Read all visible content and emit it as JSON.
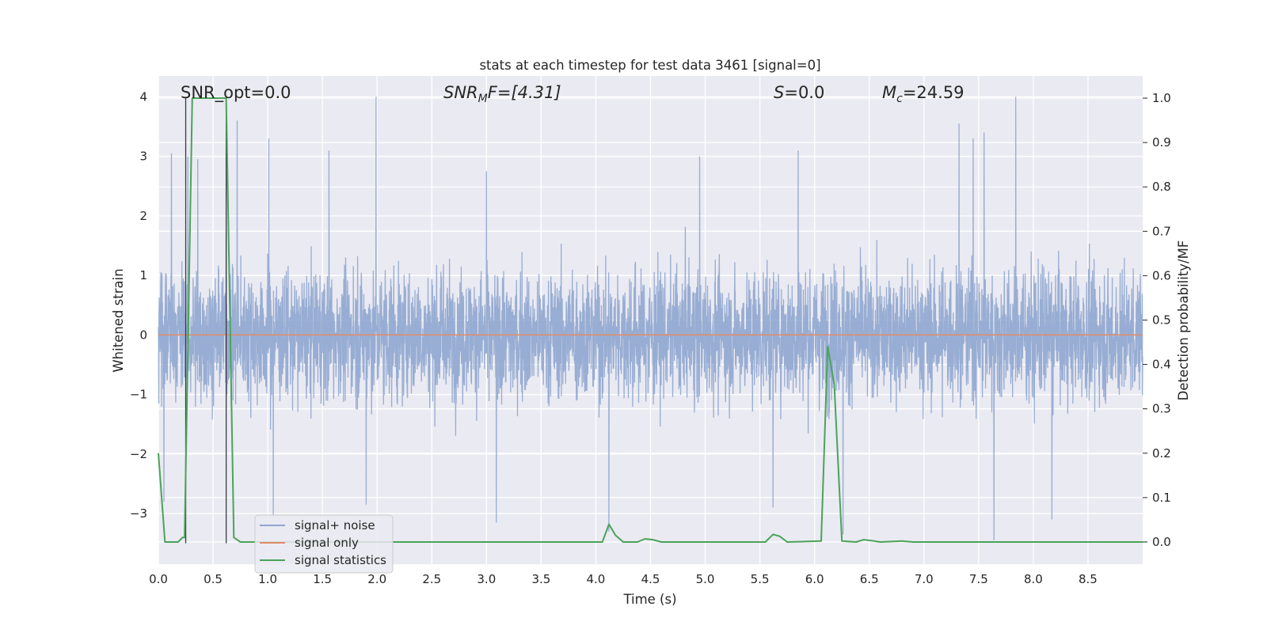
{
  "chart_data": {
    "type": "line",
    "title": "stats at each timestep for test data 3461 [signal=0]",
    "xlabel": "Time (s)",
    "ylabel": "Whitened strain",
    "y2label": "Detection probability/MF",
    "xlim": [
      0.0,
      9.0
    ],
    "ylim": [
      -3.85,
      4.35
    ],
    "y2lim": [
      -0.05,
      1.05
    ],
    "xticks": [
      "0.0",
      "0.5",
      "1.0",
      "1.5",
      "2.0",
      "2.5",
      "3.0",
      "3.5",
      "4.0",
      "4.5",
      "5.0",
      "5.5",
      "6.0",
      "6.5",
      "7.0",
      "7.5",
      "8.0",
      "8.5"
    ],
    "yticks": [
      "−3",
      "−2",
      "−1",
      "0",
      "1",
      "2",
      "3",
      "4"
    ],
    "y2ticks": [
      "0.0",
      "0.1",
      "0.2",
      "0.3",
      "0.4",
      "0.5",
      "0.6",
      "0.7",
      "0.8",
      "0.9",
      "1.0"
    ],
    "grid": true,
    "legend_position": "lower-left",
    "annotations": {
      "snr_opt": "SNR_opt=0.0",
      "snr_mf_name": "SNR",
      "snr_mf_sub": "M",
      "snr_mf_rest": "F=[4.31]",
      "s_name": "S",
      "s_rest": "=0.0",
      "mc_name": "M",
      "mc_sub": "c",
      "mc_rest": "=24.59"
    },
    "vlines": [
      0.25,
      0.62
    ],
    "series": [
      {
        "name": "signal+ noise",
        "axis": "left",
        "color": "#8fa6cf",
        "description": "whitened strain noise, approx ±1.5 dense band",
        "noise_std": 0.75,
        "spikes": [
          {
            "t": 0.12,
            "v": 3.05
          },
          {
            "t": 0.27,
            "v": 3.0
          },
          {
            "t": 0.36,
            "v": 2.95
          },
          {
            "t": 0.72,
            "v": 3.6
          },
          {
            "t": 1.01,
            "v": 3.3
          },
          {
            "t": 1.99,
            "v": 4.0
          },
          {
            "t": 4.95,
            "v": 3.0
          },
          {
            "t": 7.32,
            "v": 3.55
          },
          {
            "t": 7.55,
            "v": 3.4
          },
          {
            "t": 7.84,
            "v": 4.0
          },
          {
            "t": 7.45,
            "v": 3.3
          },
          {
            "t": 5.85,
            "v": 3.1
          },
          {
            "t": 3.0,
            "v": 2.75
          },
          {
            "t": 1.56,
            "v": 3.1
          },
          {
            "t": 0.62,
            "v": 3.1
          },
          {
            "t": 1.05,
            "v": -3.05
          },
          {
            "t": 1.9,
            "v": -2.85
          },
          {
            "t": 3.09,
            "v": -3.15
          },
          {
            "t": 4.12,
            "v": -3.3
          },
          {
            "t": 6.26,
            "v": -3.35
          },
          {
            "t": 7.64,
            "v": -3.45
          },
          {
            "t": 8.17,
            "v": -3.1
          },
          {
            "t": 5.62,
            "v": -2.9
          },
          {
            "t": 0.05,
            "v": -2.8
          }
        ]
      },
      {
        "name": "signal only",
        "axis": "left",
        "color": "#e08b6a",
        "x": [
          0.0,
          9.0
        ],
        "y": [
          0.0,
          0.0
        ]
      },
      {
        "name": "signal statistics",
        "axis": "right",
        "color": "#4aa35a",
        "x": [
          0.0,
          0.06,
          0.18,
          0.22,
          0.24,
          0.31,
          0.62,
          0.69,
          0.75,
          4.06,
          4.12,
          4.18,
          4.25,
          4.38,
          4.45,
          4.52,
          4.6,
          5.55,
          5.62,
          5.68,
          5.75,
          6.06,
          6.12,
          6.18,
          6.25,
          6.38,
          6.45,
          6.52,
          6.6,
          6.8,
          6.9,
          9.0
        ],
        "y": [
          0.2,
          0.0,
          0.0,
          0.01,
          0.01,
          1.0,
          1.0,
          0.01,
          0.0,
          0.0,
          0.04,
          0.015,
          0.0,
          0.0,
          0.007,
          0.005,
          0.0,
          0.0,
          0.017,
          0.013,
          0.0,
          0.002,
          0.44,
          0.355,
          0.002,
          0.0,
          0.005,
          0.003,
          0.0,
          0.002,
          0.0,
          0.0
        ]
      }
    ]
  }
}
